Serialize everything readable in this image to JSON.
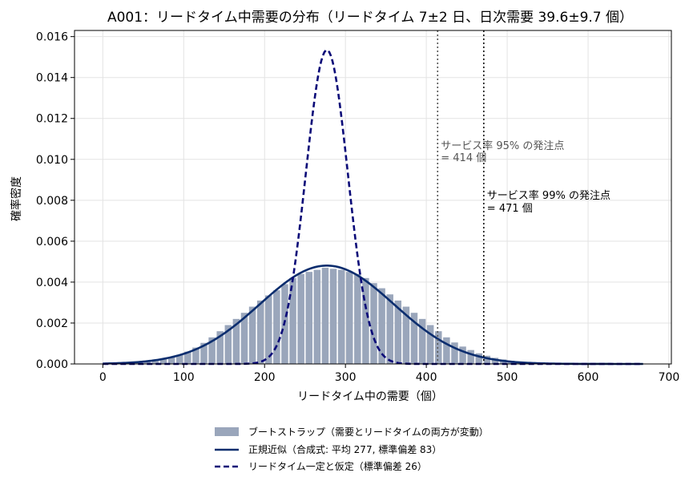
{
  "chart_data": {
    "type": "bar",
    "title": "A001：リードタイム中需要の分布（リードタイム 7±2 日、日次需要 39.6±9.7 個）",
    "xlabel": "リードタイム中の需要（個）",
    "ylabel": "確率密度",
    "xlim": [
      -35,
      703
    ],
    "ylim": [
      0,
      0.0163
    ],
    "xticks": [
      0,
      100,
      200,
      300,
      400,
      500,
      600,
      700
    ],
    "yticks": [
      0.0,
      0.002,
      0.004,
      0.006,
      0.008,
      0.01,
      0.012,
      0.014,
      0.016
    ],
    "grid": true,
    "legend_position": "below",
    "histogram": {
      "name": "ブートストラップ（需要とリードタイムの両方が変動）",
      "bin_width": 10,
      "bin_starts": [
        20,
        30,
        40,
        50,
        60,
        70,
        80,
        90,
        100,
        110,
        120,
        130,
        140,
        150,
        160,
        170,
        180,
        190,
        200,
        210,
        220,
        230,
        240,
        250,
        260,
        270,
        280,
        290,
        300,
        310,
        320,
        330,
        340,
        350,
        360,
        370,
        380,
        390,
        400,
        410,
        420,
        430,
        440,
        450,
        460,
        470,
        480,
        490,
        500,
        510,
        520
      ],
      "densities": [
        2e-05,
        4e-05,
        7e-05,
        0.00011,
        0.00016,
        0.00023,
        0.00032,
        0.00045,
        0.0006,
        0.0008,
        0.00103,
        0.0013,
        0.0016,
        0.0019,
        0.0022,
        0.0025,
        0.0028,
        0.0031,
        0.00335,
        0.0036,
        0.0039,
        0.0042,
        0.0044,
        0.0045,
        0.0046,
        0.0047,
        0.00465,
        0.0046,
        0.0045,
        0.0044,
        0.0042,
        0.00395,
        0.0037,
        0.0034,
        0.0031,
        0.0028,
        0.0025,
        0.0022,
        0.0019,
        0.0016,
        0.0013,
        0.00105,
        0.00085,
        0.00068,
        0.00052,
        0.0004,
        0.0003,
        0.00022,
        0.00015,
        0.0001,
        6e-05
      ],
      "color": "#9aa6bb"
    },
    "series": [
      {
        "name": "正規近似（合成式: 平均 277, 標準偏差 83）",
        "style": "solid",
        "mean": 277,
        "sd": 83,
        "x_range": [
          0,
          668
        ],
        "color": "#0b2d6e"
      },
      {
        "name": "リードタイム一定と仮定（標準偏差 26）",
        "style": "dashed",
        "mean": 277,
        "sd": 26,
        "x_range": [
          0,
          668
        ],
        "color": "#0a0a78"
      }
    ],
    "reference_lines": [
      {
        "x": 414,
        "label_line1": "サービス率 95% の発注点",
        "label_line2": "= 414 個",
        "color": "#555555"
      },
      {
        "x": 471,
        "label_line1": "サービス率 99% の発注点",
        "label_line2": "= 471 個",
        "color": "#000000"
      }
    ]
  }
}
